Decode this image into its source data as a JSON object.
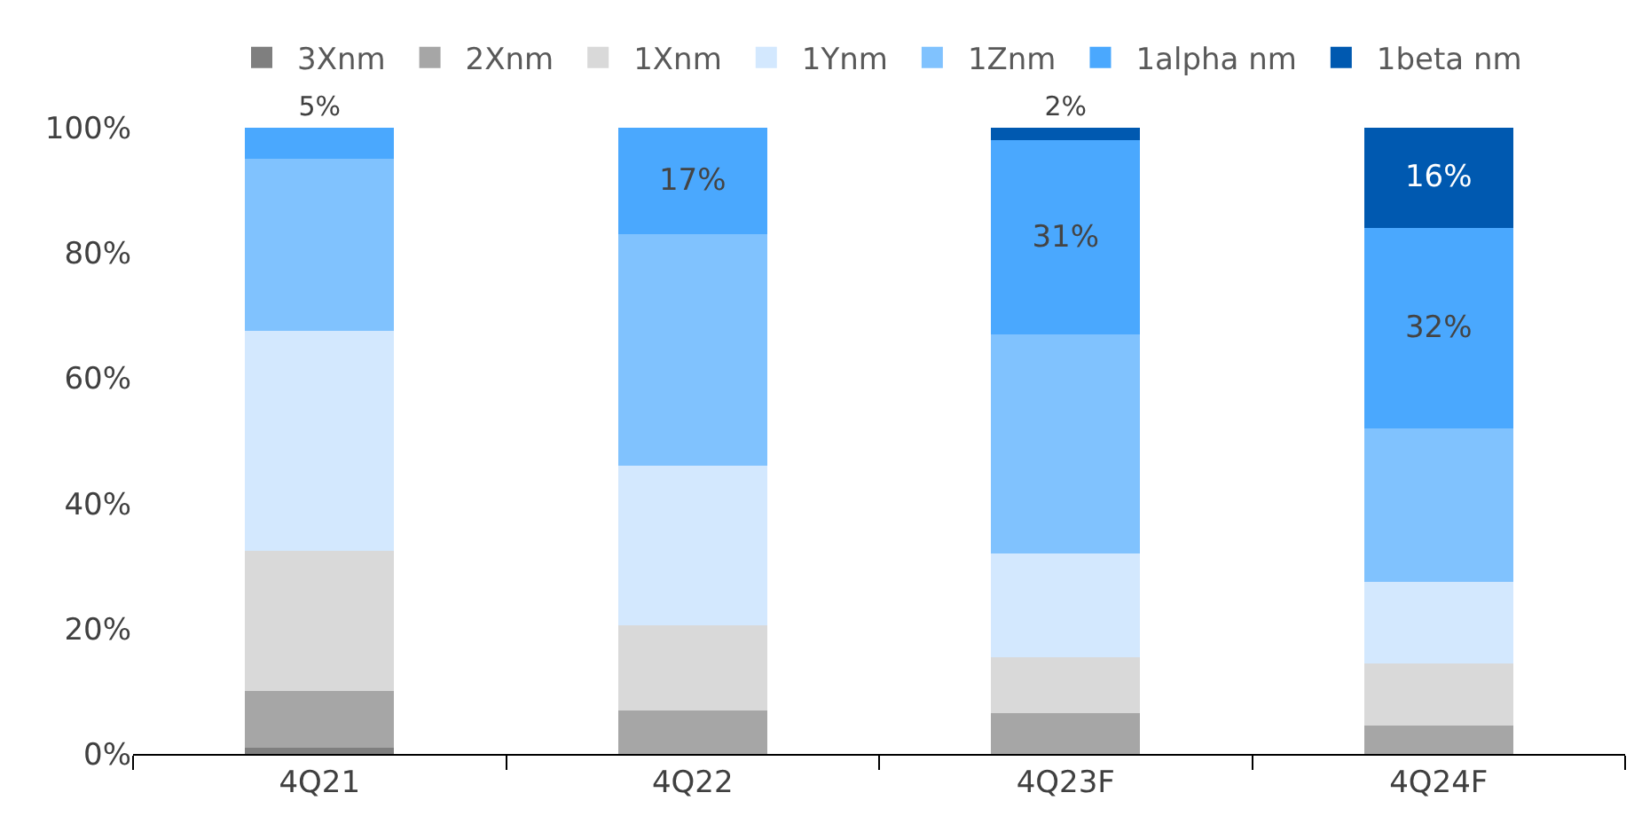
{
  "chart_data": {
    "type": "bar",
    "stacked": true,
    "categories": [
      "4Q21",
      "4Q22",
      "4Q23F",
      "4Q24F"
    ],
    "series": [
      {
        "name": "3Xnm",
        "color": "#7f7f7f",
        "values": [
          1,
          0,
          0,
          0
        ]
      },
      {
        "name": "2Xnm",
        "color": "#a6a6a6",
        "values": [
          9,
          7,
          6.5,
          4.5
        ]
      },
      {
        "name": "1Xnm",
        "color": "#d9d9d9",
        "values": [
          22.5,
          13.5,
          9,
          10
        ]
      },
      {
        "name": "1Ynm",
        "color": "#d3e8fe",
        "values": [
          35,
          25.5,
          16.5,
          13
        ]
      },
      {
        "name": "1Znm",
        "color": "#80c2fe",
        "values": [
          27.5,
          37,
          35,
          24.5
        ]
      },
      {
        "name": "1alpha nm",
        "color": "#4aa8fe",
        "values": [
          5,
          17,
          31,
          32
        ],
        "value_labels": [
          "5%",
          "17%",
          "31%",
          "32%"
        ]
      },
      {
        "name": "1beta nm",
        "color": "#0059b0",
        "values": [
          0,
          0,
          2,
          16
        ],
        "value_labels": [
          null,
          null,
          "2%",
          "16%"
        ]
      }
    ],
    "ylim": [
      0,
      100
    ],
    "yticks": [
      {
        "value": 0,
        "label": "0%"
      },
      {
        "value": 20,
        "label": "20%"
      },
      {
        "value": 40,
        "label": "40%"
      },
      {
        "value": 60,
        "label": "60%"
      },
      {
        "value": 80,
        "label": "80%"
      },
      {
        "value": 100,
        "label": "100%"
      }
    ],
    "grid": false,
    "legend": "top"
  }
}
